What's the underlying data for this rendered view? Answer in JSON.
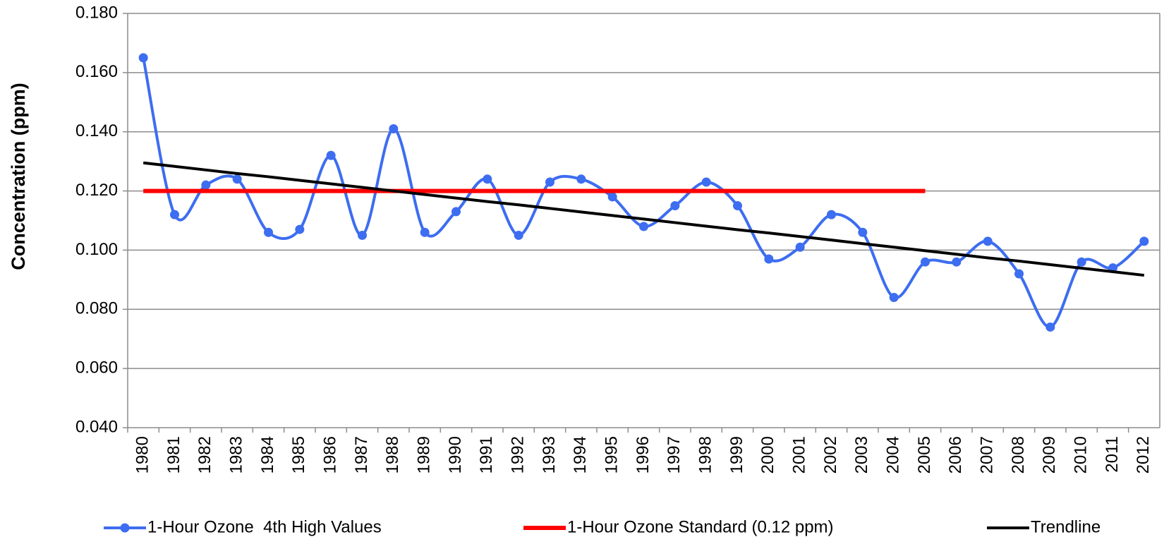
{
  "chart_data": {
    "type": "line",
    "y_label": "Concentration (ppm)",
    "categories": [
      "1980",
      "1981",
      "1982",
      "1983",
      "1984",
      "1985",
      "1986",
      "1987",
      "1988",
      "1989",
      "1990",
      "1991",
      "1992",
      "1993",
      "1994",
      "1995",
      "1996",
      "1997",
      "1998",
      "1999",
      "2000",
      "2001",
      "2002",
      "2003",
      "2004",
      "2005",
      "2006",
      "2007",
      "2008",
      "2009",
      "2010",
      "2011",
      "2012"
    ],
    "series": [
      {
        "name": "1-Hour Ozone  4th High Values",
        "color": "#3d6df0",
        "smooth": true,
        "markers": true,
        "values": [
          0.165,
          0.112,
          0.122,
          0.124,
          0.106,
          0.107,
          0.132,
          0.105,
          0.141,
          0.106,
          0.113,
          0.124,
          0.105,
          0.123,
          0.124,
          0.118,
          0.108,
          0.115,
          0.123,
          0.115,
          0.097,
          0.101,
          0.112,
          0.106,
          0.084,
          0.096,
          0.096,
          0.103,
          0.092,
          0.074,
          0.096,
          0.094,
          0.103
        ]
      },
      {
        "name": "1-Hour Ozone Standard (0.12 ppm)",
        "color": "#ff0000",
        "smooth": false,
        "markers": false,
        "values": [
          0.12,
          0.12,
          0.12,
          0.12,
          0.12,
          0.12,
          0.12,
          0.12,
          0.12,
          0.12,
          0.12,
          0.12,
          0.12,
          0.12,
          0.12,
          0.12,
          0.12,
          0.12,
          0.12,
          0.12,
          0.12,
          0.12,
          0.12,
          0.12,
          0.12,
          0.12,
          null,
          null,
          null,
          null,
          null,
          null,
          null
        ]
      },
      {
        "name": "Trendline",
        "color": "#000000",
        "smooth": false,
        "markers": false,
        "values": [
          0.1295,
          0.1283,
          0.1271,
          0.1259,
          0.1248,
          0.1236,
          0.1224,
          0.1212,
          0.12,
          0.1188,
          0.1176,
          0.1164,
          0.1153,
          0.1141,
          0.1129,
          0.1117,
          0.1105,
          0.1093,
          0.1081,
          0.1069,
          0.1058,
          0.1046,
          0.1034,
          0.1022,
          0.101,
          0.0998,
          0.0986,
          0.0974,
          0.0963,
          0.0951,
          0.0939,
          0.0927,
          0.0915
        ]
      }
    ],
    "ylim": [
      0.04,
      0.18
    ],
    "yticks": [
      {
        "value": 0.04,
        "label": "0.040"
      },
      {
        "value": 0.06,
        "label": "0.060"
      },
      {
        "value": 0.08,
        "label": "0.080"
      },
      {
        "value": 0.1,
        "label": "0.100"
      },
      {
        "value": 0.12,
        "label": "0.120"
      },
      {
        "value": 0.14,
        "label": "0.140"
      },
      {
        "value": 0.16,
        "label": "0.160"
      },
      {
        "value": 0.18,
        "label": "0.180"
      }
    ],
    "grid": true,
    "legend": "bottom"
  }
}
